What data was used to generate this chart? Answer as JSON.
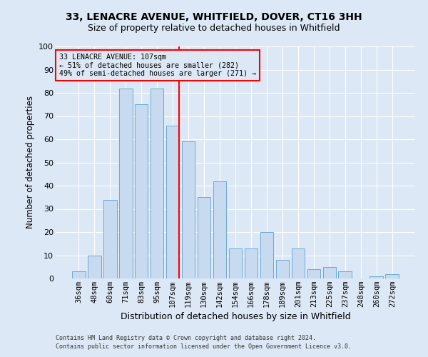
{
  "title1": "33, LENACRE AVENUE, WHITFIELD, DOVER, CT16 3HH",
  "title2": "Size of property relative to detached houses in Whitfield",
  "xlabel": "Distribution of detached houses by size in Whitfield",
  "ylabel": "Number of detached properties",
  "footnote1": "Contains HM Land Registry data © Crown copyright and database right 2024.",
  "footnote2": "Contains public sector information licensed under the Open Government Licence v3.0.",
  "categories": [
    "36sqm",
    "48sqm",
    "60sqm",
    "71sqm",
    "83sqm",
    "95sqm",
    "107sqm",
    "119sqm",
    "130sqm",
    "142sqm",
    "154sqm",
    "166sqm",
    "178sqm",
    "189sqm",
    "201sqm",
    "213sqm",
    "225sqm",
    "237sqm",
    "248sqm",
    "260sqm",
    "272sqm"
  ],
  "values": [
    3,
    10,
    34,
    82,
    75,
    82,
    66,
    59,
    35,
    42,
    13,
    13,
    20,
    8,
    13,
    4,
    5,
    3,
    0,
    1,
    2
  ],
  "bar_color": "#c8daf0",
  "bar_edge_color": "#6aaad4",
  "property_line_index": 6,
  "annotation_line1": "33 LENACRE AVENUE: 107sqm",
  "annotation_line2": "← 51% of detached houses are smaller (282)",
  "annotation_line3": "49% of semi-detached houses are larger (271) →",
  "annotation_box_color": "red",
  "vline_color": "red",
  "background_color": "#dce8f5",
  "ylim": [
    0,
    100
  ],
  "grid_color": "white",
  "yticks": [
    0,
    10,
    20,
    30,
    40,
    50,
    60,
    70,
    80,
    90,
    100
  ]
}
